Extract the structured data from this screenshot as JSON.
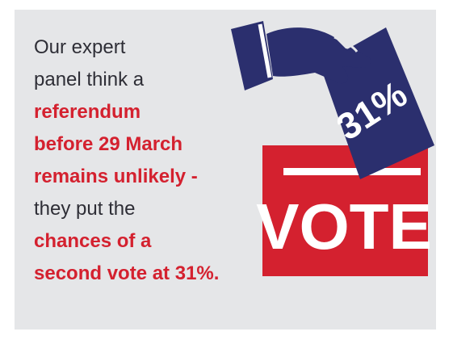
{
  "infographic": {
    "lines": [
      {
        "text": "Our expert",
        "emphasis": false
      },
      {
        "text": "panel think a",
        "emphasis": false
      },
      {
        "text": "referendum",
        "emphasis": true
      },
      {
        "text": "before 29 March",
        "emphasis": true
      },
      {
        "text": "remains unlikely -",
        "emphasis": true
      },
      {
        "text": "they put the",
        "emphasis": false
      },
      {
        "text": "chances of a",
        "emphasis": true
      },
      {
        "text": "second vote at 31%.",
        "emphasis": true
      }
    ],
    "ballot_label": "31%",
    "box_label": "VOTE",
    "icons": [
      "hand-icon",
      "ballot-paper-icon",
      "ballot-box-icon"
    ],
    "colors": {
      "background": "#e5e6e8",
      "accent_red": "#d4212f",
      "navy": "#2b2f6e",
      "text_dark": "#2e2e36"
    }
  }
}
